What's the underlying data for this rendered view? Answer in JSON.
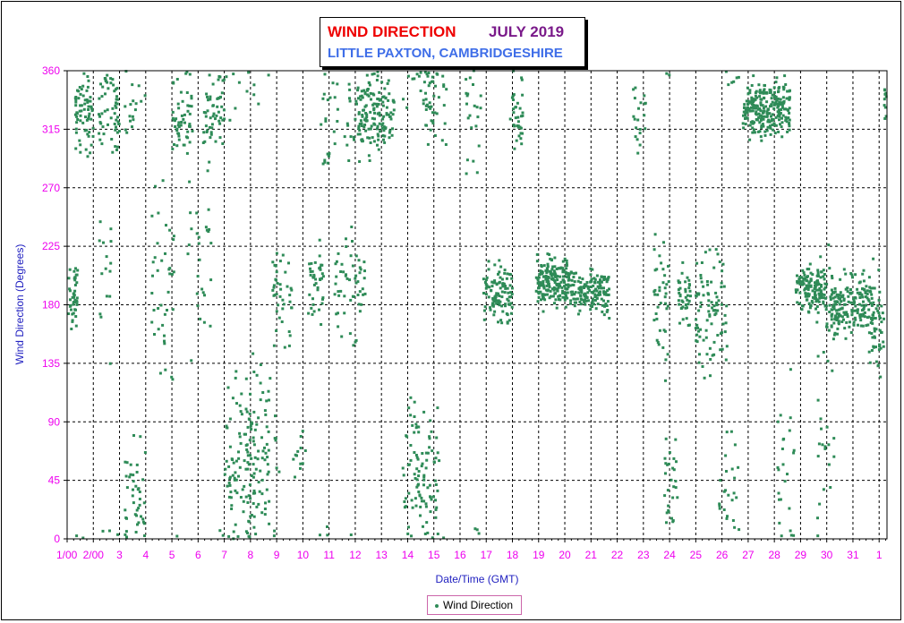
{
  "chart_data": {
    "type": "scatter",
    "title": "WIND DIRECTION",
    "title_month": "JULY 2019",
    "subtitle": "LITTLE PAXTON, CAMBRIDGESHIRE",
    "xlabel": "Date/Time (GMT)",
    "ylabel": "Wind Direction (Degrees)",
    "ylim": [
      0,
      360
    ],
    "yticks": [
      0,
      45,
      90,
      135,
      180,
      225,
      270,
      315,
      360
    ],
    "x_ticks": [
      "1/00",
      "2/00",
      "3",
      "4",
      "5",
      "6",
      "7",
      "8",
      "9",
      "10",
      "11",
      "12",
      "13",
      "14",
      "15",
      "16",
      "17",
      "18",
      "19",
      "20",
      "21",
      "22",
      "23",
      "24",
      "25",
      "26",
      "27",
      "28",
      "29",
      "30",
      "31",
      "1"
    ],
    "xlim": [
      1,
      32.3
    ],
    "grid": true,
    "legend_position": "bottom-center",
    "series": [
      {
        "name": "Wind Direction",
        "color": "#2e8b57",
        "clusters": [
          {
            "day": 1.05,
            "span": 0.35,
            "center": 185,
            "spread": 12,
            "n": 45
          },
          {
            "day": 1.3,
            "span": 0.7,
            "center": 328,
            "spread": 15,
            "n": 70
          },
          {
            "day": 2.2,
            "span": 0.8,
            "center": 330,
            "spread": 18,
            "n": 60
          },
          {
            "day": 2.2,
            "span": 0.5,
            "center": 205,
            "spread": 30,
            "n": 15
          },
          {
            "day": 3.2,
            "span": 0.8,
            "center": 35,
            "spread": 25,
            "n": 45
          },
          {
            "day": 3.2,
            "span": 0.5,
            "center": 335,
            "spread": 20,
            "n": 15
          },
          {
            "day": 4.2,
            "span": 0.9,
            "center": 200,
            "spread": 45,
            "n": 40
          },
          {
            "day": 5.0,
            "span": 0.8,
            "center": 325,
            "spread": 15,
            "n": 55
          },
          {
            "day": 5.6,
            "span": 0.9,
            "center": 220,
            "spread": 45,
            "n": 30
          },
          {
            "day": 6.2,
            "span": 0.8,
            "center": 330,
            "spread": 15,
            "n": 55
          },
          {
            "day": 7.0,
            "span": 1.2,
            "center": 50,
            "spread": 35,
            "n": 90
          },
          {
            "day": 7.8,
            "span": 1.3,
            "center": 60,
            "spread": 40,
            "n": 90
          },
          {
            "day": 8.8,
            "span": 0.8,
            "center": 190,
            "spread": 20,
            "n": 40
          },
          {
            "day": 9.6,
            "span": 0.5,
            "center": 65,
            "spread": 10,
            "n": 12
          },
          {
            "day": 10.2,
            "span": 0.6,
            "center": 195,
            "spread": 15,
            "n": 40
          },
          {
            "day": 10.6,
            "span": 0.8,
            "center": 330,
            "spread": 25,
            "n": 25
          },
          {
            "day": 11.2,
            "span": 1.2,
            "center": 195,
            "spread": 25,
            "n": 55
          },
          {
            "day": 11.6,
            "span": 0.8,
            "center": 330,
            "spread": 20,
            "n": 25
          },
          {
            "day": 12.1,
            "span": 1.4,
            "center": 328,
            "spread": 14,
            "n": 140
          },
          {
            "day": 13.8,
            "span": 1.4,
            "center": 45,
            "spread": 30,
            "n": 110
          },
          {
            "day": 14.6,
            "span": 0.9,
            "center": 338,
            "spread": 18,
            "n": 45
          },
          {
            "day": 16.2,
            "span": 0.6,
            "center": 330,
            "spread": 20,
            "n": 25
          },
          {
            "day": 16.9,
            "span": 1.1,
            "center": 192,
            "spread": 12,
            "n": 110
          },
          {
            "day": 17.9,
            "span": 0.5,
            "center": 330,
            "spread": 15,
            "n": 35
          },
          {
            "day": 18.9,
            "span": 1.2,
            "center": 197,
            "spread": 9,
            "n": 170
          },
          {
            "day": 20.0,
            "span": 1.7,
            "center": 190,
            "spread": 8,
            "n": 170
          },
          {
            "day": 22.6,
            "span": 0.5,
            "center": 325,
            "spread": 12,
            "n": 20
          },
          {
            "day": 23.4,
            "span": 0.6,
            "center": 180,
            "spread": 30,
            "n": 40
          },
          {
            "day": 23.8,
            "span": 0.5,
            "center": 50,
            "spread": 25,
            "n": 30
          },
          {
            "day": 24.3,
            "span": 0.5,
            "center": 188,
            "spread": 10,
            "n": 40
          },
          {
            "day": 25.0,
            "span": 1.2,
            "center": 175,
            "spread": 25,
            "n": 90
          },
          {
            "day": 25.9,
            "span": 0.8,
            "center": 40,
            "spread": 30,
            "n": 30
          },
          {
            "day": 26.8,
            "span": 1.8,
            "center": 330,
            "spread": 10,
            "n": 260
          },
          {
            "day": 28.0,
            "span": 0.8,
            "center": 40,
            "spread": 35,
            "n": 25
          },
          {
            "day": 28.8,
            "span": 1.2,
            "center": 192,
            "spread": 8,
            "n": 140
          },
          {
            "day": 29.6,
            "span": 0.7,
            "center": 120,
            "spread": 60,
            "n": 35
          },
          {
            "day": 30.1,
            "span": 0.7,
            "center": 178,
            "spread": 12,
            "n": 90
          },
          {
            "day": 30.8,
            "span": 1.0,
            "center": 180,
            "spread": 12,
            "n": 100
          },
          {
            "day": 31.6,
            "span": 0.6,
            "center": 165,
            "spread": 22,
            "n": 50
          },
          {
            "day": 32.2,
            "span": 0.12,
            "center": 335,
            "spread": 10,
            "n": 10
          }
        ]
      }
    ]
  },
  "legend": {
    "label": "Wind Direction"
  }
}
